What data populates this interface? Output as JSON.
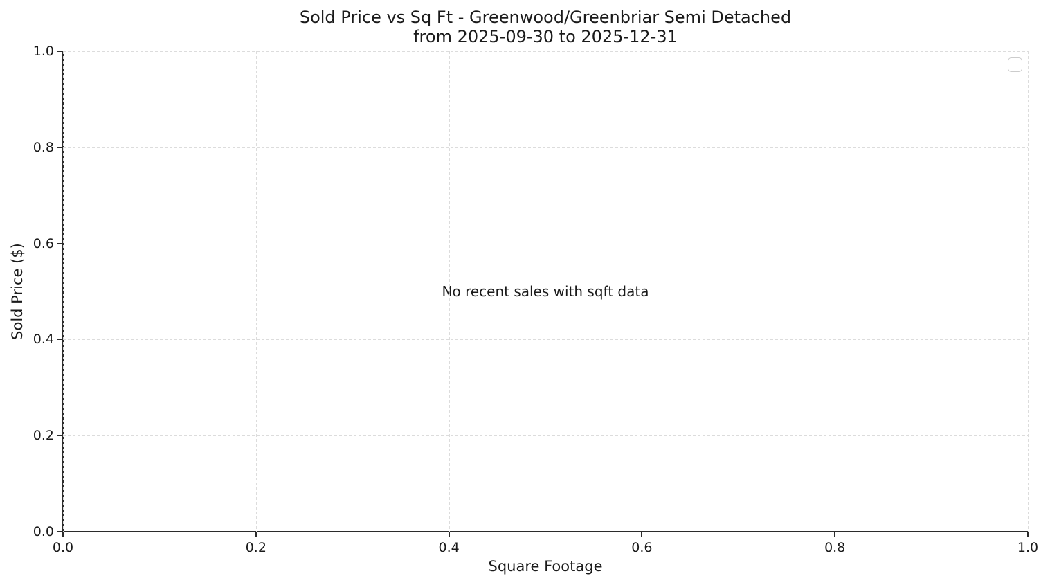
{
  "chart_data": {
    "type": "scatter",
    "title": "Sold Price vs Sq Ft - Greenwood/Greenbriar Semi Detached",
    "subtitle": "from 2025-09-30 to 2025-12-31",
    "xlabel": "Square Footage",
    "ylabel": "Sold Price ($)",
    "xlim": [
      0.0,
      1.0
    ],
    "ylim": [
      0.0,
      1.0
    ],
    "x_ticks": [
      {
        "value": 0.0,
        "label": "0.0"
      },
      {
        "value": 0.2,
        "label": "0.2"
      },
      {
        "value": 0.4,
        "label": "0.4"
      },
      {
        "value": 0.6,
        "label": "0.6"
      },
      {
        "value": 0.8,
        "label": "0.8"
      },
      {
        "value": 1.0,
        "label": "1.0"
      }
    ],
    "y_ticks": [
      {
        "value": 0.0,
        "label": "0.0"
      },
      {
        "value": 0.2,
        "label": "0.2"
      },
      {
        "value": 0.4,
        "label": "0.4"
      },
      {
        "value": 0.6,
        "label": "0.6"
      },
      {
        "value": 0.8,
        "label": "0.8"
      },
      {
        "value": 1.0,
        "label": "1.0"
      }
    ],
    "grid": true,
    "grid_style": "dashed",
    "series": [],
    "annotation": {
      "text": "No recent sales with sqft data",
      "x": 0.5,
      "y": 0.5
    },
    "legend": {
      "position": "upper-right",
      "entries": []
    }
  },
  "colors": {
    "background": "#ffffff",
    "text": "#1a1a1a",
    "grid": "#dcdcdc",
    "spine": "#2b2b2b",
    "tick": "#2b2b2b",
    "legend_border": "#cccccc",
    "legend_background": "#ffffff"
  }
}
